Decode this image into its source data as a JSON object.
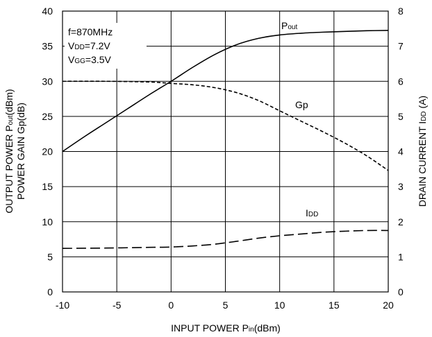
{
  "chart_data": {
    "type": "line",
    "xlabel": {
      "main": "INPUT  POWER P",
      "sub": "in",
      "tail": "(dBm)"
    },
    "ylabel_left": {
      "line1": {
        "main": "OUTPUT POWER  P",
        "sub": "out",
        "tail": "(dBm)"
      },
      "line2": "POWER GAIN Gp(dB)"
    },
    "ylabel_right": {
      "main": "DRAIN CURRENT I",
      "sub": "DD",
      "tail": " (A)"
    },
    "xlim": [
      -10,
      20
    ],
    "ylim_left": [
      0,
      40
    ],
    "ylim_right": [
      0,
      8
    ],
    "x_ticks": [
      "-10",
      "-5",
      "0",
      "5",
      "10",
      "15",
      "20"
    ],
    "y_left_ticks": [
      "0",
      "5",
      "10",
      "15",
      "20",
      "25",
      "30",
      "35",
      "40"
    ],
    "y_right_ticks": [
      "0",
      "1",
      "2",
      "3",
      "4",
      "5",
      "6",
      "7",
      "8"
    ],
    "grid": true,
    "conditions": {
      "freq": "f=870MHz",
      "vdd": {
        "main": "V",
        "sub": "DD",
        "tail": "=7.2V"
      },
      "vgg": {
        "main": "V",
        "sub": "GG",
        "tail": "=3.5V"
      }
    },
    "series": [
      {
        "name": "Pout",
        "label": {
          "main": "P",
          "sub": "out"
        },
        "axis": "left",
        "style": "solid",
        "x": [
          -10,
          -8,
          -6,
          -4,
          -2,
          0,
          2,
          4,
          6,
          8,
          10,
          12,
          14,
          16,
          18,
          20
        ],
        "y": [
          20,
          22.1,
          24.1,
          26.1,
          28.1,
          30,
          32,
          33.8,
          35.2,
          36.1,
          36.6,
          36.85,
          37,
          37.1,
          37.2,
          37.25
        ]
      },
      {
        "name": "Gp",
        "label": {
          "main": "Gp",
          "sub": ""
        },
        "axis": "left",
        "style": "dashed",
        "x": [
          -10,
          -6,
          -2,
          0,
          2,
          4,
          6,
          8,
          10,
          12,
          14,
          16,
          18,
          20
        ],
        "y": [
          30,
          30,
          29.9,
          29.7,
          29.5,
          29.1,
          28.4,
          27.3,
          25.8,
          24.3,
          22.8,
          21.2,
          19.4,
          17.3
        ]
      },
      {
        "name": "IDD",
        "label": {
          "main": "I",
          "sub": "DD"
        },
        "axis": "right",
        "style": "longdash",
        "x": [
          -10,
          -6,
          -2,
          0,
          2,
          4,
          6,
          8,
          10,
          12,
          14,
          16,
          18,
          20
        ],
        "y": [
          1.24,
          1.25,
          1.27,
          1.28,
          1.31,
          1.36,
          1.44,
          1.53,
          1.6,
          1.65,
          1.7,
          1.73,
          1.75,
          1.75
        ]
      }
    ]
  }
}
